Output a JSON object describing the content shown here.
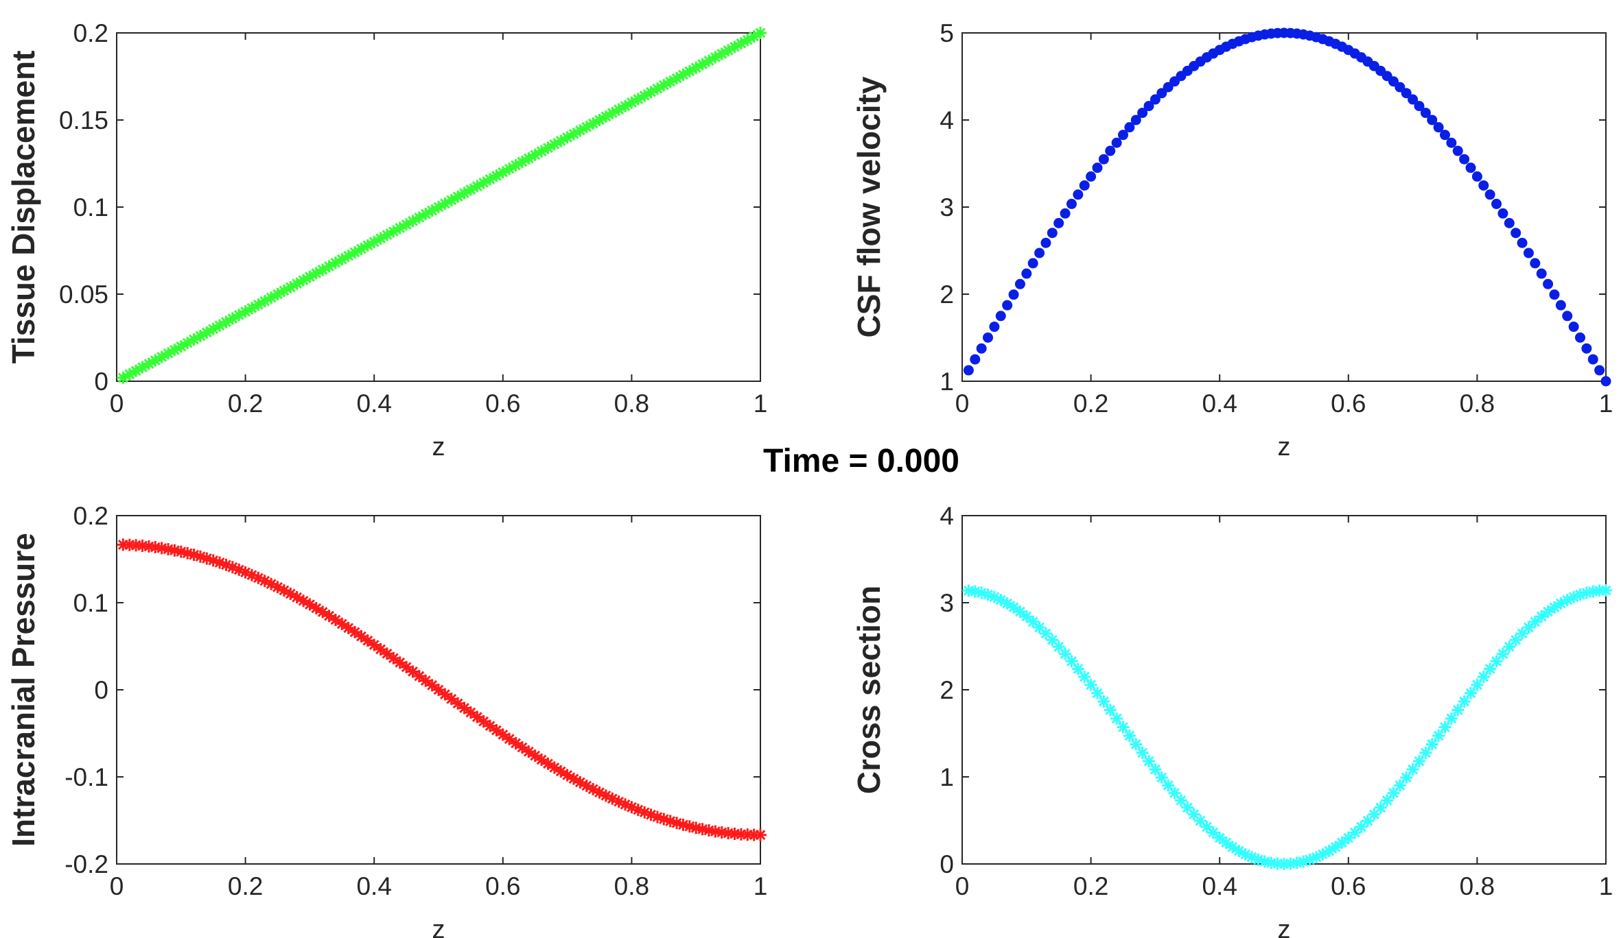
{
  "figure": {
    "title": "Time = 0.000"
  },
  "chart_data": [
    {
      "type": "scatter",
      "id": "tissue",
      "xlabel": "z",
      "ylabel": "Tissue Displacement",
      "xlim": [
        0,
        1
      ],
      "ylim": [
        0,
        0.2
      ],
      "xticks": [
        "0",
        "0.2",
        "0.4",
        "0.6",
        "0.8",
        "1"
      ],
      "yticks": [
        "0",
        "0.05",
        "0.1",
        "0.15",
        "0.2"
      ],
      "xtick_values": [
        0,
        0.2,
        0.4,
        0.6,
        0.8,
        1
      ],
      "ytick_values": [
        0,
        0.05,
        0.1,
        0.15,
        0.2
      ],
      "marker": "star",
      "color": "#33ff33",
      "x_start": 0.01,
      "x_end": 1.0,
      "x_step": 0.01,
      "formula": "0.2*z"
    },
    {
      "type": "scatter",
      "id": "csf",
      "xlabel": "z",
      "ylabel": "CSF flow velocity",
      "xlim": [
        0,
        1
      ],
      "ylim": [
        1,
        5
      ],
      "xticks": [
        "0",
        "0.2",
        "0.4",
        "0.6",
        "0.8",
        "1"
      ],
      "yticks": [
        "1",
        "2",
        "3",
        "4",
        "5"
      ],
      "xtick_values": [
        0,
        0.2,
        0.4,
        0.6,
        0.8,
        1
      ],
      "ytick_values": [
        1,
        2,
        3,
        4,
        5
      ],
      "marker": "circle",
      "color": "#0a1fe6",
      "x_start": 0.01,
      "x_end": 1.0,
      "x_step": 0.01,
      "formula": "1+4*sin(pi*z)"
    },
    {
      "type": "scatter",
      "id": "pressure",
      "xlabel": "z",
      "ylabel": "Intracranial Pressure",
      "xlim": [
        0,
        1
      ],
      "ylim": [
        -0.2,
        0.2
      ],
      "xticks": [
        "0",
        "0.2",
        "0.4",
        "0.6",
        "0.8",
        "1"
      ],
      "yticks": [
        "-0.2",
        "-0.1",
        "0",
        "0.1",
        "0.2"
      ],
      "xtick_values": [
        0,
        0.2,
        0.4,
        0.6,
        0.8,
        1
      ],
      "ytick_values": [
        -0.2,
        -0.1,
        0,
        0.1,
        0.2
      ],
      "marker": "star",
      "color": "#ff1a1a",
      "x_start": 0.01,
      "x_end": 1.0,
      "x_step": 0.01,
      "formula": "0.1667*cos(pi*z)"
    },
    {
      "type": "scatter",
      "id": "cross",
      "xlabel": "z",
      "ylabel": "Cross section",
      "xlim": [
        0,
        1
      ],
      "ylim": [
        0,
        4
      ],
      "xticks": [
        "0",
        "0.2",
        "0.4",
        "0.6",
        "0.8",
        "1"
      ],
      "yticks": [
        "0",
        "1",
        "2",
        "3",
        "4"
      ],
      "xtick_values": [
        0,
        0.2,
        0.4,
        0.6,
        0.8,
        1
      ],
      "ytick_values": [
        0,
        1,
        2,
        3,
        4
      ],
      "marker": "star",
      "color": "#33ffff",
      "x_start": 0.01,
      "x_end": 1.0,
      "x_step": 0.01,
      "formula": "(pi/2)*(1+cos(2*pi*z))"
    }
  ]
}
